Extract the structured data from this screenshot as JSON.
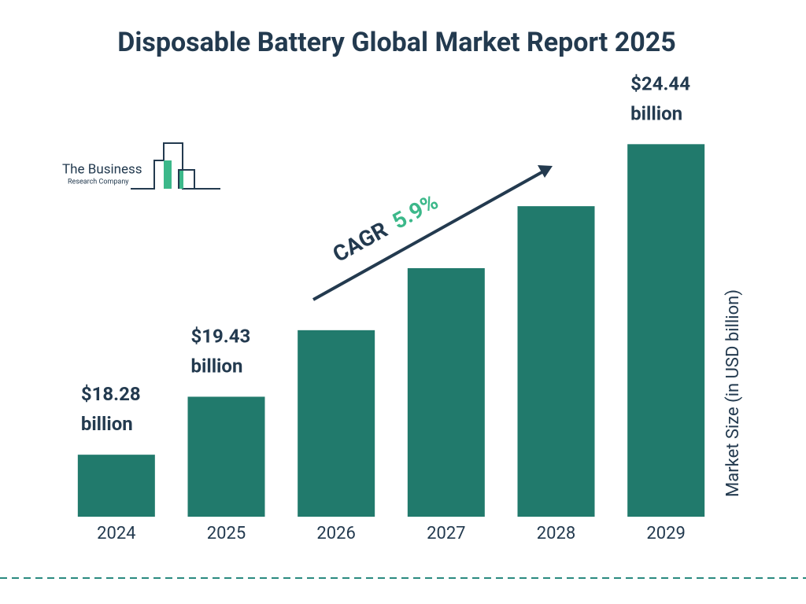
{
  "chart_data": {
    "type": "bar",
    "title": "Disposable Battery Global Market Report 2025",
    "categories": [
      "2024",
      "2025",
      "2026",
      "2027",
      "2028",
      "2029"
    ],
    "values": [
      18.28,
      19.43,
      20.75,
      21.98,
      23.21,
      24.44
    ],
    "value_labels": [
      "$18.28 billion",
      "$19.43 billion",
      null,
      null,
      null,
      "$24.44 billion"
    ],
    "color": "#217a6c",
    "ylim": [
      17.05,
      25.74
    ],
    "y_axis_label": "Market Size (in USD billion)",
    "annotation": {
      "label": "CAGR",
      "value": "5.9%"
    },
    "logo": {
      "line1": "The Business",
      "line2": "Research Company"
    }
  }
}
